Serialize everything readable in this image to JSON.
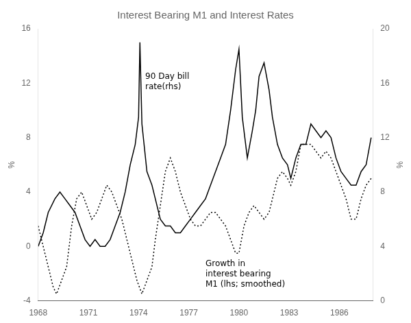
{
  "chart_data": {
    "type": "line",
    "title": "Interest Bearing M1 and Interest Rates",
    "ylabel": "%",
    "y2label": "%",
    "xlim": [
      1968.0,
      1988.0
    ],
    "xticks": [
      1968,
      1971,
      1974,
      1977,
      1980,
      1983,
      1986
    ],
    "ylim": [
      -4,
      16
    ],
    "yticks": [
      -4,
      0,
      4,
      8,
      12,
      16
    ],
    "y2lim": [
      0,
      20
    ],
    "y2ticks": [
      0,
      4,
      8,
      12,
      16,
      20
    ],
    "grid": false,
    "annotations": [
      "90 Day bill\nrate(rhs)",
      "Growth in\ninterest bearing\nM1 (lhs; smoothed)"
    ],
    "series": [
      {
        "axis": "y",
        "color": "#000000",
        "line_style": "dotted",
        "x": [
          1968.0,
          1968.3,
          1968.6,
          1968.9,
          1969.1,
          1969.4,
          1969.7,
          1970.0,
          1970.3,
          1970.6,
          1970.9,
          1971.2,
          1971.5,
          1971.8,
          1972.1,
          1972.4,
          1972.7,
          1973.0,
          1973.3,
          1973.6,
          1973.9,
          1974.2,
          1974.5,
          1974.8,
          1975.0,
          1975.3,
          1975.6,
          1975.9,
          1976.2,
          1976.5,
          1976.8,
          1977.1,
          1977.4,
          1977.7,
          1978.0,
          1978.3,
          1978.6,
          1978.9,
          1979.2,
          1979.5,
          1979.8,
          1980.0,
          1980.3,
          1980.6,
          1980.9,
          1981.2,
          1981.5,
          1981.8,
          1982.0,
          1982.3,
          1982.6,
          1982.9,
          1983.1,
          1983.4,
          1983.7,
          1984.0,
          1984.3,
          1984.6,
          1984.9,
          1985.2,
          1985.5,
          1985.8,
          1986.1,
          1986.4,
          1986.7,
          1987.0,
          1987.3,
          1987.6,
          1987.9
        ],
        "values": [
          1.5,
          0.0,
          -1.5,
          -3.0,
          -3.5,
          -2.5,
          -1.5,
          1.5,
          3.5,
          4.0,
          3.0,
          2.0,
          2.5,
          3.5,
          4.5,
          4.0,
          3.0,
          2.0,
          0.5,
          -1.0,
          -2.5,
          -3.5,
          -2.5,
          -1.5,
          0.5,
          3.0,
          5.5,
          6.5,
          5.5,
          4.0,
          3.0,
          2.0,
          1.5,
          1.5,
          2.0,
          2.5,
          2.5,
          2.0,
          1.5,
          0.5,
          -0.5,
          -0.5,
          1.5,
          2.5,
          3.0,
          2.5,
          2.0,
          2.5,
          3.5,
          5.0,
          5.5,
          5.0,
          4.5,
          5.5,
          7.5,
          7.5,
          7.5,
          7.0,
          6.5,
          7.0,
          6.5,
          5.5,
          4.5,
          3.5,
          2.0,
          2.0,
          3.5,
          4.5,
          5.0
        ]
      },
      {
        "axis": "y2",
        "color": "#000000",
        "line_style": "solid",
        "x": [
          1968.0,
          1968.3,
          1968.6,
          1969.0,
          1969.3,
          1969.6,
          1969.9,
          1970.2,
          1970.5,
          1970.8,
          1971.1,
          1971.4,
          1971.7,
          1972.0,
          1972.3,
          1972.6,
          1972.9,
          1973.2,
          1973.5,
          1973.8,
          1974.0,
          1974.08,
          1974.2,
          1974.5,
          1974.8,
          1975.0,
          1975.3,
          1975.6,
          1975.9,
          1976.2,
          1976.5,
          1976.8,
          1977.1,
          1977.4,
          1977.7,
          1978.0,
          1978.3,
          1978.6,
          1978.9,
          1979.2,
          1979.5,
          1979.8,
          1980.0,
          1980.2,
          1980.5,
          1980.8,
          1981.0,
          1981.2,
          1981.5,
          1981.8,
          1982.0,
          1982.3,
          1982.6,
          1982.9,
          1983.1,
          1983.4,
          1983.7,
          1984.0,
          1984.3,
          1984.6,
          1984.9,
          1985.2,
          1985.5,
          1985.8,
          1986.1,
          1986.4,
          1986.7,
          1987.0,
          1987.3,
          1987.6,
          1987.9
        ],
        "values": [
          4.0,
          5.0,
          6.5,
          7.5,
          8.0,
          7.5,
          7.0,
          6.5,
          5.5,
          4.5,
          4.0,
          4.5,
          4.0,
          4.0,
          4.5,
          5.5,
          6.5,
          8.0,
          10.0,
          11.5,
          13.5,
          19.0,
          13.0,
          9.5,
          8.5,
          7.5,
          6.0,
          5.5,
          5.5,
          5.0,
          5.0,
          5.5,
          6.0,
          6.5,
          7.0,
          7.5,
          8.5,
          9.5,
          10.5,
          11.5,
          14.0,
          17.0,
          18.5,
          13.5,
          10.5,
          12.5,
          14.0,
          16.5,
          17.5,
          15.5,
          13.5,
          11.5,
          10.5,
          10.0,
          9.0,
          10.5,
          11.5,
          11.5,
          13.0,
          12.5,
          12.0,
          12.5,
          12.0,
          10.5,
          9.5,
          9.0,
          8.5,
          8.5,
          9.5,
          10.0,
          12.0
        ]
      }
    ]
  }
}
